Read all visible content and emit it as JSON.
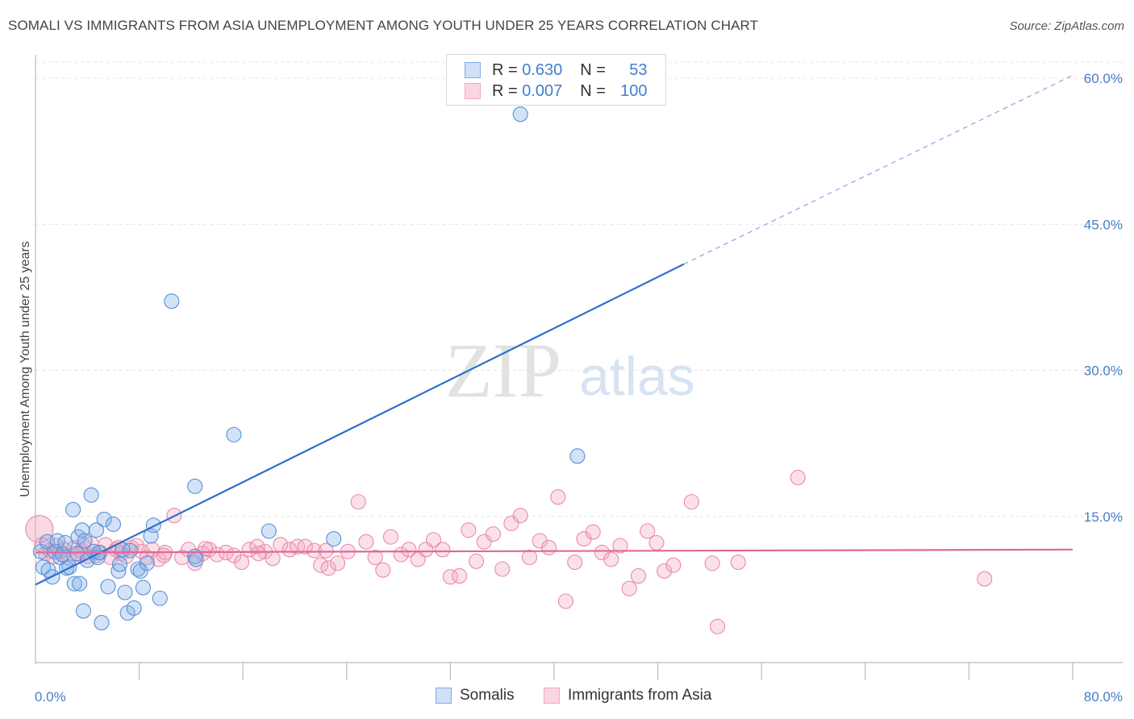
{
  "header": {
    "title": "SOMALI VS IMMIGRANTS FROM ASIA UNEMPLOYMENT AMONG YOUTH UNDER 25 YEARS CORRELATION CHART",
    "source": "Source: ZipAtlas.com"
  },
  "watermark": {
    "zip": "ZIP",
    "atlas": "atlas"
  },
  "legend": {
    "rows": [
      {
        "r_label": "R =",
        "r_value": "0.630",
        "n_label": "N =",
        "n_value": "53",
        "color": "#7faee8"
      },
      {
        "r_label": "R =",
        "r_value": "0.007",
        "n_label": "N =",
        "n_value": "100",
        "color": "#f2a8bf"
      }
    ]
  },
  "chart_data": {
    "type": "scatter",
    "ylabel": "Unemployment Among Youth under 25 years",
    "xlim": [
      0,
      80
    ],
    "ylim": [
      0,
      60
    ],
    "x_ticks": [
      "0.0%",
      "80.0%"
    ],
    "y_ticks": [
      {
        "value": 15,
        "label": "15.0%"
      },
      {
        "value": 30,
        "label": "30.0%"
      },
      {
        "value": 45,
        "label": "45.0%"
      },
      {
        "value": 60,
        "label": "60.0%"
      }
    ],
    "grid": true,
    "legend_position": "bottom",
    "series": [
      {
        "name": "Somalis",
        "color": "#7faee8",
        "stroke": "#5a8fd6",
        "trend": {
          "x0": 0,
          "y0": 8.0,
          "x1": 50,
          "y1": 40.9,
          "extend_to_x": 80,
          "extend_y": 60.3,
          "color": "#2f6fcf"
        },
        "points": [
          [
            0.4,
            11.4
          ],
          [
            0.6,
            9.8
          ],
          [
            0.9,
            12.4
          ],
          [
            1.0,
            9.5
          ],
          [
            1.3,
            8.8
          ],
          [
            1.5,
            11.4
          ],
          [
            1.7,
            12.5
          ],
          [
            1.9,
            10.8
          ],
          [
            2.1,
            11.1
          ],
          [
            2.3,
            12.3
          ],
          [
            2.4,
            9.7
          ],
          [
            2.6,
            9.8
          ],
          [
            2.9,
            15.7
          ],
          [
            3.0,
            8.1
          ],
          [
            3.2,
            11.2
          ],
          [
            3.3,
            12.9
          ],
          [
            3.4,
            8.1
          ],
          [
            3.6,
            13.6
          ],
          [
            3.7,
            5.3
          ],
          [
            3.8,
            12.5
          ],
          [
            4.0,
            10.5
          ],
          [
            4.3,
            17.2
          ],
          [
            4.5,
            11.4
          ],
          [
            4.7,
            13.6
          ],
          [
            4.8,
            10.8
          ],
          [
            4.9,
            11.3
          ],
          [
            5.1,
            4.1
          ],
          [
            5.3,
            14.7
          ],
          [
            5.6,
            7.8
          ],
          [
            6.0,
            14.2
          ],
          [
            6.4,
            9.4
          ],
          [
            6.7,
            11.6
          ],
          [
            6.9,
            7.2
          ],
          [
            7.1,
            5.1
          ],
          [
            7.3,
            11.5
          ],
          [
            7.6,
            5.6
          ],
          [
            7.9,
            9.6
          ],
          [
            8.1,
            9.4
          ],
          [
            8.3,
            7.7
          ],
          [
            8.6,
            10.2
          ],
          [
            8.9,
            13.0
          ],
          [
            9.1,
            14.1
          ],
          [
            9.6,
            6.6
          ],
          [
            10.5,
            37.1
          ],
          [
            12.3,
            10.9
          ],
          [
            12.4,
            10.6
          ],
          [
            12.3,
            18.1
          ],
          [
            15.3,
            23.4
          ],
          [
            18.0,
            13.5
          ],
          [
            23.0,
            12.7
          ],
          [
            37.4,
            56.3
          ],
          [
            41.8,
            21.2
          ],
          [
            6.5,
            10.1
          ]
        ]
      },
      {
        "name": "Immigrants from Asia",
        "color": "#f2a8bf",
        "stroke": "#e98aa9",
        "trend": {
          "x0": 0,
          "y0": 11.3,
          "x1": 80,
          "y1": 11.6,
          "color": "#e0699a"
        },
        "points": [
          [
            0.3,
            13.7
          ],
          [
            0.5,
            12.1
          ],
          [
            0.8,
            11.2
          ],
          [
            1.1,
            11.5
          ],
          [
            1.4,
            10.9
          ],
          [
            1.6,
            12.0
          ],
          [
            1.9,
            11.4
          ],
          [
            2.2,
            11.6
          ],
          [
            2.6,
            10.7
          ],
          [
            3.0,
            11.8
          ],
          [
            3.3,
            11.1
          ],
          [
            3.6,
            11.4
          ],
          [
            4.0,
            10.9
          ],
          [
            4.3,
            12.2
          ],
          [
            4.7,
            11.0
          ],
          [
            5.0,
            11.3
          ],
          [
            5.4,
            12.1
          ],
          [
            5.8,
            10.8
          ],
          [
            6.2,
            11.6
          ],
          [
            6.6,
            11.2
          ],
          [
            7.0,
            10.9
          ],
          [
            7.4,
            11.8
          ],
          [
            7.8,
            12.0
          ],
          [
            8.2,
            11.4
          ],
          [
            8.6,
            10.8
          ],
          [
            9.0,
            11.6
          ],
          [
            9.5,
            10.6
          ],
          [
            10.0,
            11.3
          ],
          [
            10.7,
            15.1
          ],
          [
            11.3,
            10.8
          ],
          [
            11.8,
            11.6
          ],
          [
            12.3,
            10.2
          ],
          [
            12.9,
            11.2
          ],
          [
            13.4,
            11.6
          ],
          [
            14.0,
            11.1
          ],
          [
            14.7,
            11.3
          ],
          [
            15.3,
            11.0
          ],
          [
            15.9,
            10.3
          ],
          [
            16.5,
            11.6
          ],
          [
            17.1,
            11.9
          ],
          [
            17.7,
            11.4
          ],
          [
            18.3,
            10.7
          ],
          [
            18.9,
            12.1
          ],
          [
            19.6,
            11.6
          ],
          [
            20.2,
            11.9
          ],
          [
            20.8,
            11.9
          ],
          [
            21.5,
            11.5
          ],
          [
            22.0,
            10.0
          ],
          [
            22.6,
            9.7
          ],
          [
            23.3,
            10.2
          ],
          [
            24.1,
            11.4
          ],
          [
            24.9,
            16.5
          ],
          [
            25.5,
            12.4
          ],
          [
            26.2,
            10.8
          ],
          [
            26.8,
            9.5
          ],
          [
            27.4,
            12.9
          ],
          [
            28.2,
            11.1
          ],
          [
            28.8,
            11.6
          ],
          [
            29.5,
            10.6
          ],
          [
            30.1,
            11.6
          ],
          [
            30.7,
            12.6
          ],
          [
            31.4,
            11.6
          ],
          [
            32.0,
            8.8
          ],
          [
            32.7,
            8.9
          ],
          [
            33.4,
            13.6
          ],
          [
            34.0,
            10.4
          ],
          [
            34.6,
            12.4
          ],
          [
            35.3,
            13.2
          ],
          [
            36.0,
            9.6
          ],
          [
            36.7,
            14.3
          ],
          [
            37.4,
            15.1
          ],
          [
            38.1,
            10.8
          ],
          [
            38.9,
            12.5
          ],
          [
            39.6,
            11.8
          ],
          [
            40.3,
            17.0
          ],
          [
            40.9,
            6.3
          ],
          [
            41.6,
            10.3
          ],
          [
            42.3,
            12.7
          ],
          [
            43.0,
            13.4
          ],
          [
            43.7,
            11.3
          ],
          [
            44.4,
            10.6
          ],
          [
            45.1,
            12.0
          ],
          [
            45.8,
            7.6
          ],
          [
            46.5,
            8.9
          ],
          [
            47.2,
            13.5
          ],
          [
            47.9,
            12.3
          ],
          [
            48.5,
            9.4
          ],
          [
            49.2,
            10.0
          ],
          [
            50.6,
            16.5
          ],
          [
            52.2,
            10.2
          ],
          [
            52.6,
            3.7
          ],
          [
            54.2,
            10.3
          ],
          [
            58.8,
            19.0
          ],
          [
            73.2,
            8.6
          ],
          [
            22.4,
            11.5
          ],
          [
            17.2,
            11.2
          ],
          [
            13.1,
            11.7
          ],
          [
            9.9,
            11.0
          ],
          [
            6.4,
            11.8
          ],
          [
            3.7,
            12.0
          ]
        ]
      }
    ]
  }
}
